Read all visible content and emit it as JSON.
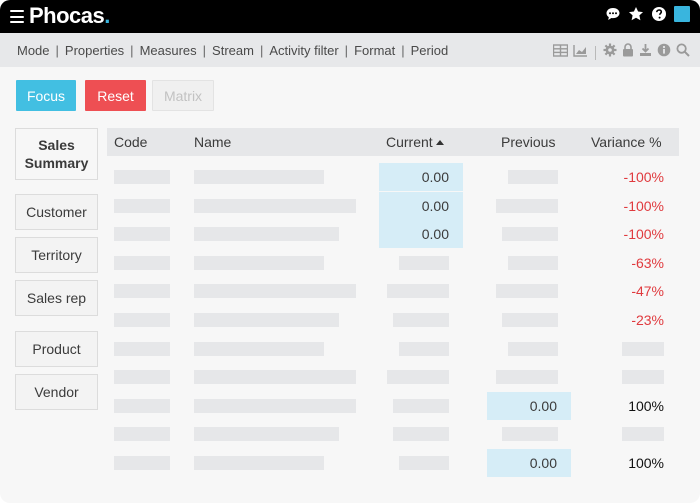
{
  "header": {
    "logo_text": "Phocas",
    "logo_dot": ".",
    "accent_color": "#39b5de",
    "icons": [
      "chat-icon",
      "star-icon",
      "help-icon",
      "square-icon"
    ]
  },
  "menu": {
    "items": [
      "Mode",
      "Properties",
      "Measures",
      "Stream",
      "Activity filter",
      "Format",
      "Period"
    ],
    "separator": "|",
    "tool_icons": [
      "table-icon",
      "chart-icon",
      "gear-icon",
      "lock-icon",
      "download-icon",
      "info-icon",
      "search-icon"
    ]
  },
  "toolbar": {
    "focus_label": "Focus",
    "reset_label": "Reset",
    "matrix_label": "Matrix"
  },
  "sidebar": {
    "tabs": [
      {
        "label_line1": "Sales",
        "label_line2": "Summary",
        "active": true
      },
      {
        "label": "Customer"
      },
      {
        "label": "Territory"
      },
      {
        "label": "Sales rep"
      },
      {
        "label": "Product"
      },
      {
        "label": "Vendor"
      }
    ]
  },
  "table": {
    "columns": {
      "code": "Code",
      "name": "Name",
      "current": "Current",
      "previous": "Previous",
      "variance": "Variance %"
    },
    "rows": [
      {
        "current": "0.00",
        "previous": null,
        "variance": "-100%"
      },
      {
        "current": "0.00",
        "previous": null,
        "variance": "-100%"
      },
      {
        "current": "0.00",
        "previous": null,
        "variance": "-100%"
      },
      {
        "current": null,
        "previous": null,
        "variance": "-63%"
      },
      {
        "current": null,
        "previous": null,
        "variance": "-47%"
      },
      {
        "current": null,
        "previous": null,
        "variance": "-23%"
      },
      {
        "current": null,
        "previous": null,
        "variance": null
      },
      {
        "current": null,
        "previous": null,
        "variance": null
      },
      {
        "current": null,
        "previous": "0.00",
        "variance": "100%"
      },
      {
        "current": null,
        "previous": null,
        "variance": null
      },
      {
        "current": null,
        "previous": "0.00",
        "variance": "100%"
      }
    ]
  }
}
